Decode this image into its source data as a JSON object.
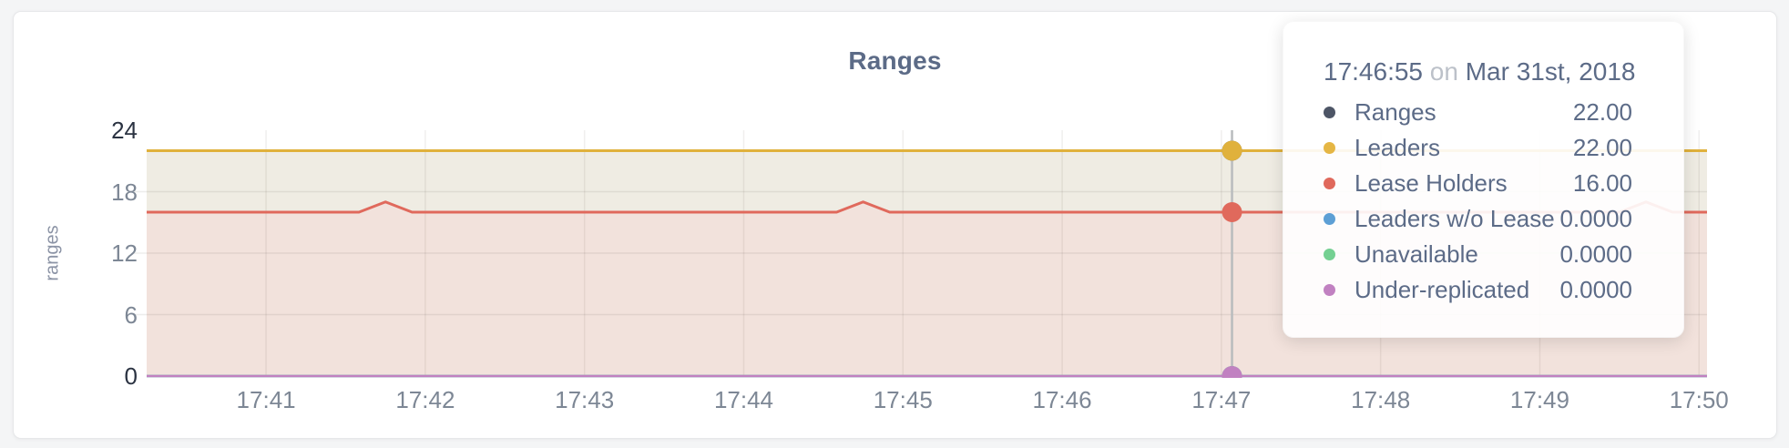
{
  "chart": {
    "title": "Ranges",
    "y_axis_label": "ranges"
  },
  "tooltip": {
    "time": "17:46:55",
    "conjunction": "on",
    "date": "Mar 31st, 2018",
    "rows": [
      {
        "label": "Ranges",
        "value": "22.00",
        "color": "#4d5566"
      },
      {
        "label": "Leaders",
        "value": "22.00",
        "color": "#e5b644"
      },
      {
        "label": "Lease Holders",
        "value": "16.00",
        "color": "#e0695c"
      },
      {
        "label": "Leaders w/o Lease",
        "value": "0.0000",
        "color": "#5d9fd5"
      },
      {
        "label": "Unavailable",
        "value": "0.0000",
        "color": "#74d092"
      },
      {
        "label": "Under-replicated",
        "value": "0.0000",
        "color": "#c181c1"
      }
    ]
  },
  "colors": {
    "title_text": "#5c6b87",
    "axis_tick_text": "#7d8795",
    "axis_tick_edge_text": "#2b3342",
    "leaders_line": "#e0b13c",
    "lease_holders_line": "#e0695c",
    "under_replicated_line": "#c181c1",
    "leaders_fill": "#efece3",
    "lease_holders_fill": "#f2e2dc",
    "hover_guideline": "#b9bcbe"
  },
  "chart_data": {
    "type": "area",
    "title": "Ranges",
    "xlabel": "",
    "ylabel": "ranges",
    "date_context": "Mar 31st, 2018",
    "ylim": [
      0,
      24
    ],
    "y_ticks": [
      0,
      6,
      12,
      18,
      24
    ],
    "x_domain": [
      "17:40:15",
      "17:50:03"
    ],
    "x_ticks": [
      "17:41",
      "17:42",
      "17:43",
      "17:44",
      "17:45",
      "17:46",
      "17:47",
      "17:48",
      "17:49",
      "17:50"
    ],
    "grid": true,
    "legend_position": "tooltip-only",
    "hover": {
      "snapped_time": "17:46:55",
      "guideline_time": "17:47:04"
    },
    "series": [
      {
        "name": "Ranges",
        "color": "#4d5566",
        "points": [
          [
            "17:40:15",
            22
          ],
          [
            "17:50:03",
            22
          ]
        ]
      },
      {
        "name": "Leaders",
        "color": "#e0b13c",
        "fill": "#efece3",
        "points": [
          [
            "17:40:15",
            22
          ],
          [
            "17:50:03",
            22
          ]
        ]
      },
      {
        "name": "Lease Holders",
        "color": "#e0695c",
        "fill": "#f2e2dc",
        "points": [
          [
            "17:40:15",
            16
          ],
          [
            "17:41:35",
            16
          ],
          [
            "17:41:45",
            17
          ],
          [
            "17:41:55",
            16
          ],
          [
            "17:44:35",
            16
          ],
          [
            "17:44:45",
            17
          ],
          [
            "17:44:55",
            16
          ],
          [
            "17:49:30",
            16
          ],
          [
            "17:49:40",
            17
          ],
          [
            "17:49:50",
            16
          ],
          [
            "17:50:03",
            16
          ]
        ]
      },
      {
        "name": "Leaders w/o Lease",
        "color": "#5d9fd5",
        "points": [
          [
            "17:40:15",
            0
          ],
          [
            "17:50:03",
            0
          ]
        ]
      },
      {
        "name": "Unavailable",
        "color": "#74d092",
        "points": [
          [
            "17:40:15",
            0
          ],
          [
            "17:50:03",
            0
          ]
        ]
      },
      {
        "name": "Under-replicated",
        "color": "#c181c1",
        "points": [
          [
            "17:40:15",
            0
          ],
          [
            "17:50:03",
            0
          ]
        ]
      }
    ]
  }
}
